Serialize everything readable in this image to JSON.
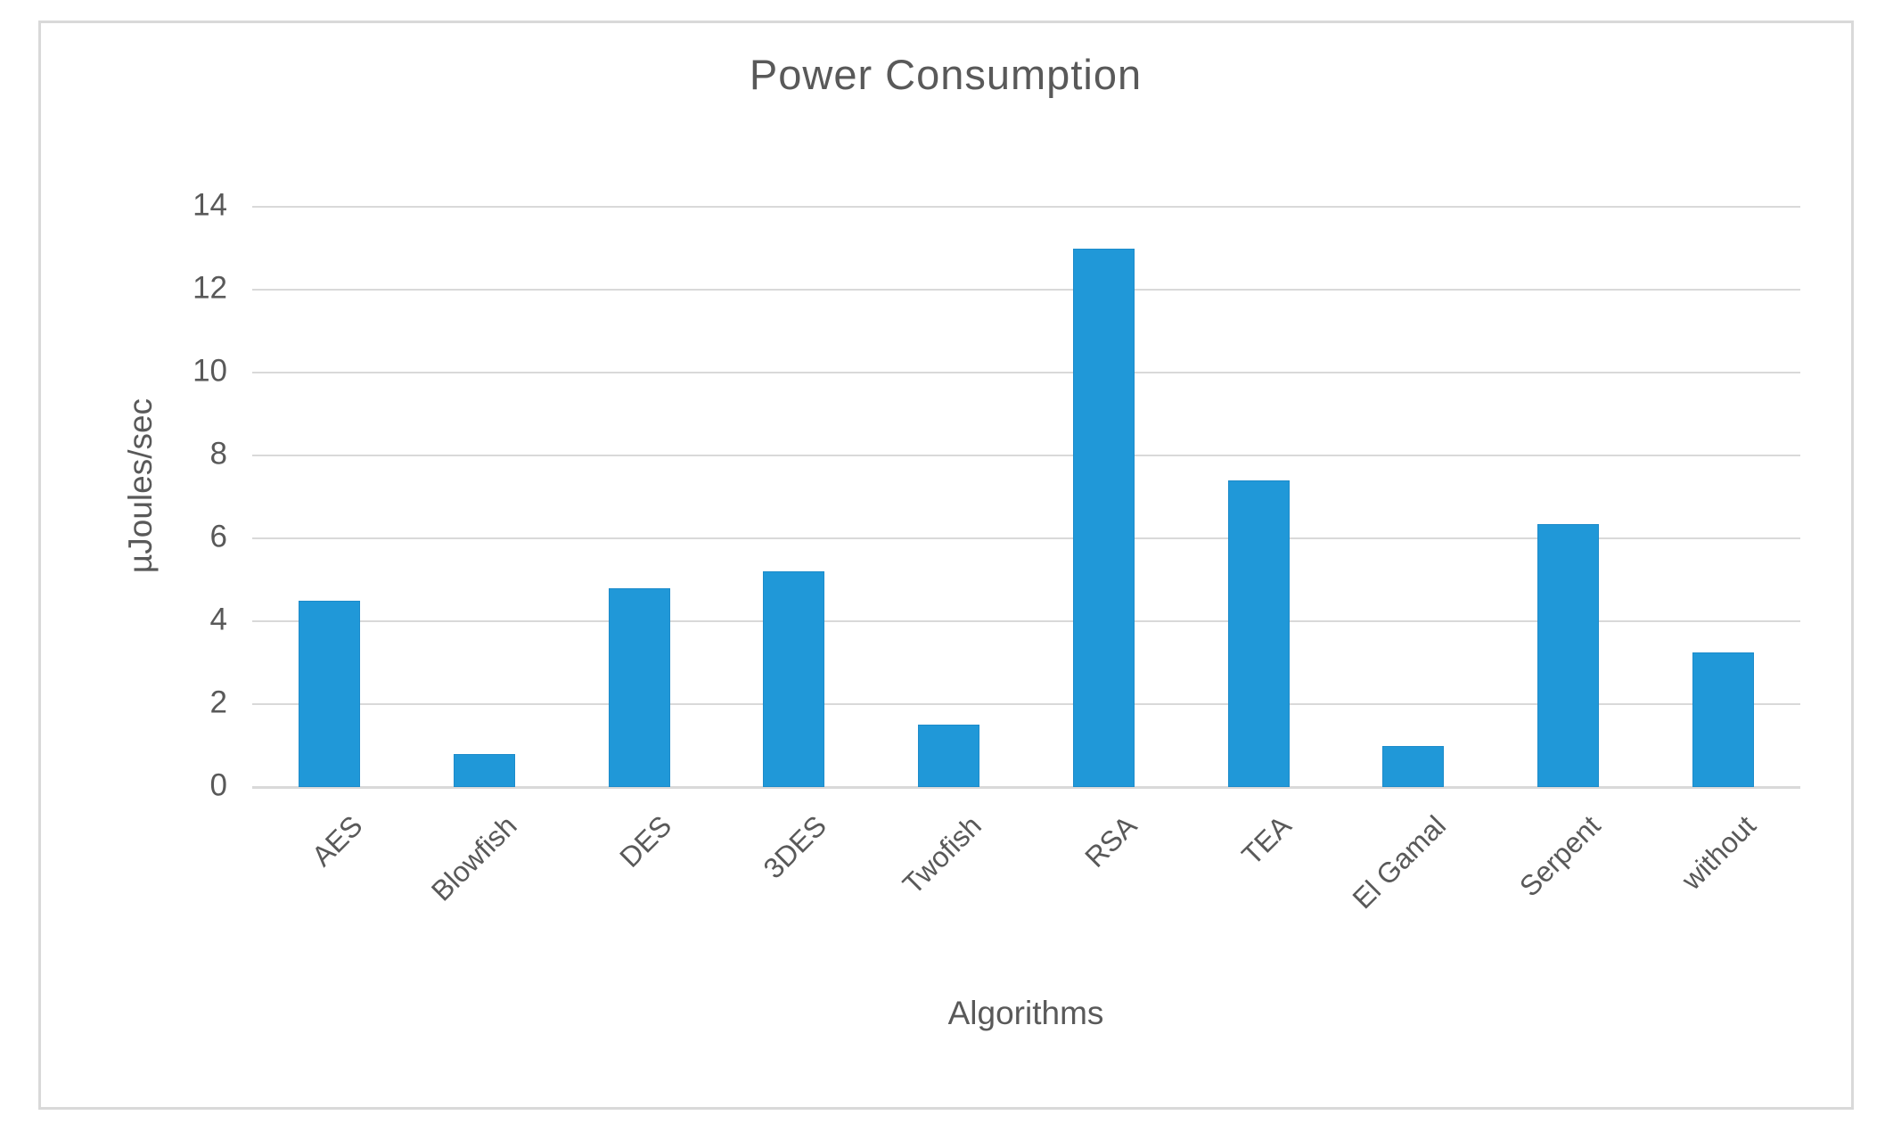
{
  "chart_data": {
    "type": "bar",
    "title": "Power Consumption",
    "xlabel": "Algorithms",
    "ylabel": "µJoules/sec",
    "categories": [
      "AES",
      "Blowfish",
      "DES",
      "3DES",
      "Twofish",
      "RSA",
      "TEA",
      "El Gamal",
      "Serpent",
      "without"
    ],
    "values": [
      4.5,
      0.8,
      4.8,
      5.2,
      1.5,
      13,
      7.4,
      1,
      6.35,
      3.25
    ],
    "ylim": [
      0,
      14
    ],
    "yticks": [
      0,
      2,
      4,
      6,
      8,
      10,
      12,
      14
    ],
    "grid": "horizontal-only",
    "legend_position": "none",
    "bar_color": "#2098D8",
    "gridline_color": "#D9D9D9",
    "frame_border_color": "#D9D9D9",
    "text_color": "#595959"
  }
}
